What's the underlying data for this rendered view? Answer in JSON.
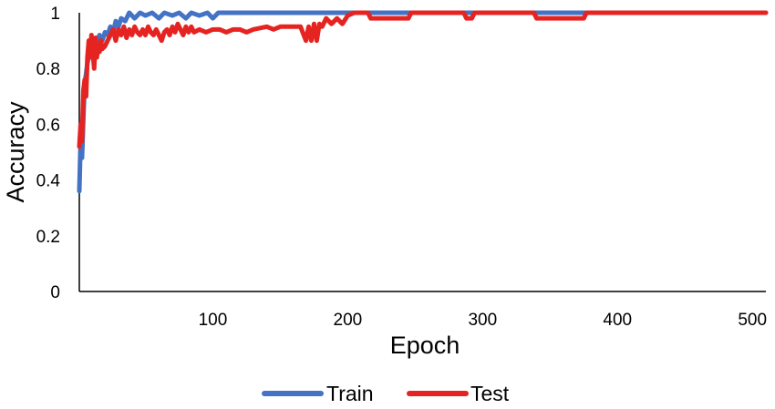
{
  "chart_data": {
    "type": "line",
    "title": "",
    "xlabel": "Epoch",
    "ylabel": "Accuracy",
    "xlim": [
      1,
      510
    ],
    "ylim": [
      0,
      1
    ],
    "x_ticks": [
      100,
      200,
      300,
      400,
      500
    ],
    "x_tick_labels": [
      "100",
      "200",
      "300",
      "400",
      "500"
    ],
    "y_ticks": [
      0,
      0.2,
      0.4,
      0.6,
      0.8,
      1
    ],
    "y_tick_labels": [
      "0",
      "0.2",
      "0.4",
      "0.6",
      "0.8",
      "1"
    ],
    "grid": false,
    "legend_position": "bottom",
    "series": [
      {
        "name": "Train",
        "color": "#4472c4",
        "points": [
          [
            1,
            0.36
          ],
          [
            2,
            0.55
          ],
          [
            3,
            0.48
          ],
          [
            4,
            0.62
          ],
          [
            5,
            0.75
          ],
          [
            6,
            0.78
          ],
          [
            7,
            0.82
          ],
          [
            8,
            0.84
          ],
          [
            9,
            0.86
          ],
          [
            10,
            0.88
          ],
          [
            12,
            0.87
          ],
          [
            14,
            0.9
          ],
          [
            16,
            0.92
          ],
          [
            18,
            0.9
          ],
          [
            20,
            0.93
          ],
          [
            22,
            0.92
          ],
          [
            24,
            0.95
          ],
          [
            26,
            0.93
          ],
          [
            28,
            0.97
          ],
          [
            30,
            0.95
          ],
          [
            32,
            0.98
          ],
          [
            35,
            0.97
          ],
          [
            38,
            1.0
          ],
          [
            42,
            0.98
          ],
          [
            46,
            1.0
          ],
          [
            50,
            0.99
          ],
          [
            55,
            1.0
          ],
          [
            60,
            0.98
          ],
          [
            64,
            1.0
          ],
          [
            70,
            0.99
          ],
          [
            75,
            1.0
          ],
          [
            80,
            0.98
          ],
          [
            84,
            1.0
          ],
          [
            90,
            0.99
          ],
          [
            96,
            1.0
          ],
          [
            100,
            0.98
          ],
          [
            104,
            1.0
          ],
          [
            510,
            1.0
          ]
        ]
      },
      {
        "name": "Test",
        "color": "#e52421",
        "points": [
          [
            1,
            0.52
          ],
          [
            2,
            0.6
          ],
          [
            3,
            0.54
          ],
          [
            4,
            0.72
          ],
          [
            5,
            0.76
          ],
          [
            6,
            0.7
          ],
          [
            7,
            0.84
          ],
          [
            8,
            0.9
          ],
          [
            9,
            0.84
          ],
          [
            10,
            0.92
          ],
          [
            11,
            0.86
          ],
          [
            12,
            0.8
          ],
          [
            13,
            0.91
          ],
          [
            14,
            0.84
          ],
          [
            15,
            0.88
          ],
          [
            16,
            0.86
          ],
          [
            17,
            0.9
          ],
          [
            18,
            0.87
          ],
          [
            20,
            0.88
          ],
          [
            22,
            0.9
          ],
          [
            24,
            0.92
          ],
          [
            26,
            0.94
          ],
          [
            28,
            0.9
          ],
          [
            30,
            0.94
          ],
          [
            32,
            0.92
          ],
          [
            34,
            0.95
          ],
          [
            36,
            0.91
          ],
          [
            38,
            0.94
          ],
          [
            40,
            0.92
          ],
          [
            42,
            0.95
          ],
          [
            44,
            0.93
          ],
          [
            46,
            0.92
          ],
          [
            48,
            0.94
          ],
          [
            50,
            0.92
          ],
          [
            52,
            0.95
          ],
          [
            54,
            0.93
          ],
          [
            56,
            0.92
          ],
          [
            58,
            0.94
          ],
          [
            60,
            0.92
          ],
          [
            62,
            0.9
          ],
          [
            64,
            0.93
          ],
          [
            66,
            0.94
          ],
          [
            68,
            0.92
          ],
          [
            70,
            0.95
          ],
          [
            72,
            0.93
          ],
          [
            74,
            0.96
          ],
          [
            76,
            0.94
          ],
          [
            78,
            0.92
          ],
          [
            80,
            0.95
          ],
          [
            82,
            0.93
          ],
          [
            84,
            0.95
          ],
          [
            86,
            0.93
          ],
          [
            90,
            0.94
          ],
          [
            95,
            0.93
          ],
          [
            100,
            0.94
          ],
          [
            105,
            0.94
          ],
          [
            110,
            0.93
          ],
          [
            115,
            0.94
          ],
          [
            120,
            0.94
          ],
          [
            125,
            0.93
          ],
          [
            130,
            0.94
          ],
          [
            140,
            0.95
          ],
          [
            145,
            0.94
          ],
          [
            150,
            0.95
          ],
          [
            160,
            0.95
          ],
          [
            165,
            0.95
          ],
          [
            169,
            0.9
          ],
          [
            171,
            0.95
          ],
          [
            173,
            0.9
          ],
          [
            175,
            0.96
          ],
          [
            177,
            0.9
          ],
          [
            179,
            0.96
          ],
          [
            181,
            0.95
          ],
          [
            184,
            0.98
          ],
          [
            188,
            0.96
          ],
          [
            192,
            0.98
          ],
          [
            196,
            0.96
          ],
          [
            200,
            0.99
          ],
          [
            205,
            1.0
          ],
          [
            215,
            1.0
          ],
          [
            217,
            0.98
          ],
          [
            245,
            0.98
          ],
          [
            247,
            1.0
          ],
          [
            286,
            1.0
          ],
          [
            288,
            0.98
          ],
          [
            292,
            0.98
          ],
          [
            294,
            1.0
          ],
          [
            338,
            1.0
          ],
          [
            340,
            0.98
          ],
          [
            375,
            0.98
          ],
          [
            377,
            1.0
          ],
          [
            510,
            1.0
          ]
        ]
      }
    ]
  }
}
